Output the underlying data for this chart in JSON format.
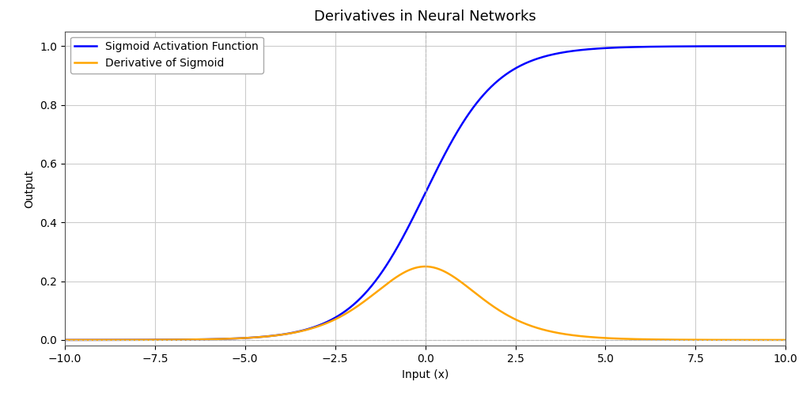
{
  "title": "Derivatives in Neural Networks",
  "xlabel": "Input (x)",
  "ylabel": "Output",
  "xlim": [
    -10,
    10
  ],
  "ylim": [
    -0.02,
    1.05
  ],
  "sigmoid_label": "Sigmoid Activation Function",
  "derivative_label": "Derivative of Sigmoid",
  "sigmoid_color": "#0000ff",
  "derivative_color": "#ffa500",
  "line_width": 1.8,
  "grid_color": "#cccccc",
  "grid_linestyle": "-",
  "grid_linewidth": 0.8,
  "vline_x": 0,
  "vline_color": "#bbbbbb",
  "vline_linestyle": "--",
  "vline_linewidth": 0.8,
  "hline_y": 0,
  "hline_color": "#bbbbbb",
  "hline_linestyle": "--",
  "hline_linewidth": 0.8,
  "background_color": "#ffffff",
  "figure_background": "#ffffff",
  "title_fontsize": 13,
  "label_fontsize": 10,
  "tick_fontsize": 10,
  "legend_fontsize": 10,
  "legend_loc": "upper left",
  "xticks": [
    -10,
    -7.5,
    -5,
    -2.5,
    0,
    2.5,
    5,
    7.5,
    10
  ],
  "yticks": [
    0.0,
    0.2,
    0.4,
    0.6,
    0.8,
    1.0
  ],
  "spine_color": "#555555",
  "figsize": [
    10.24,
    4.97
  ],
  "dpi": 100
}
